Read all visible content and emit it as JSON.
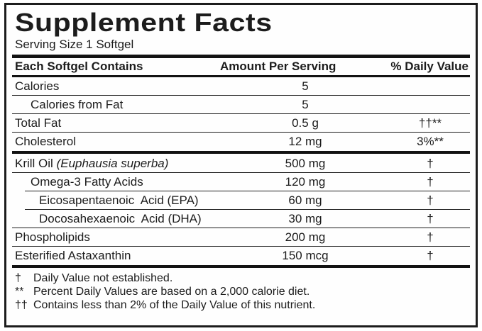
{
  "label": {
    "title": "Supplement Facts",
    "serving_size": "Serving Size 1 Softgel",
    "columns": {
      "contains": "Each Softgel Contains",
      "amount": "Amount Per Serving",
      "daily_value": "% Daily Value"
    },
    "rows": [
      {
        "name": "Calories",
        "amount": "5",
        "dv": ""
      },
      {
        "name": "Calories from Fat",
        "amount": "5",
        "dv": ""
      },
      {
        "name": "Total Fat",
        "amount": "0.5 g",
        "dv": "††**"
      },
      {
        "name": "Cholesterol",
        "amount": "12 mg",
        "dv": "3%**"
      },
      {
        "name": "Krill Oil ",
        "name_italic": "(Euphausia superba)",
        "amount": "500 mg",
        "dv": "†"
      },
      {
        "name": "Omega-3 Fatty Acids",
        "amount": "120 mg",
        "dv": "†"
      },
      {
        "name": "Eicosapentaenoic  Acid (EPA)",
        "amount": "60 mg",
        "dv": "†"
      },
      {
        "name": "Docosahexaenoic  Acid (DHA)",
        "amount": "30 mg",
        "dv": "†"
      },
      {
        "name": "Phospholipids",
        "amount": "200 mg",
        "dv": "†"
      },
      {
        "name": "Esterified Astaxanthin",
        "amount": "150 mcg",
        "dv": "†"
      }
    ],
    "footnotes": [
      {
        "symbol": "†",
        "text": "Daily Value not established."
      },
      {
        "symbol": "**",
        "text": "Percent Daily Values are based on a 2,000 calorie diet."
      },
      {
        "symbol": "††",
        "text": "Contains less than 2% of the Daily Value of this nutrient."
      }
    ]
  }
}
